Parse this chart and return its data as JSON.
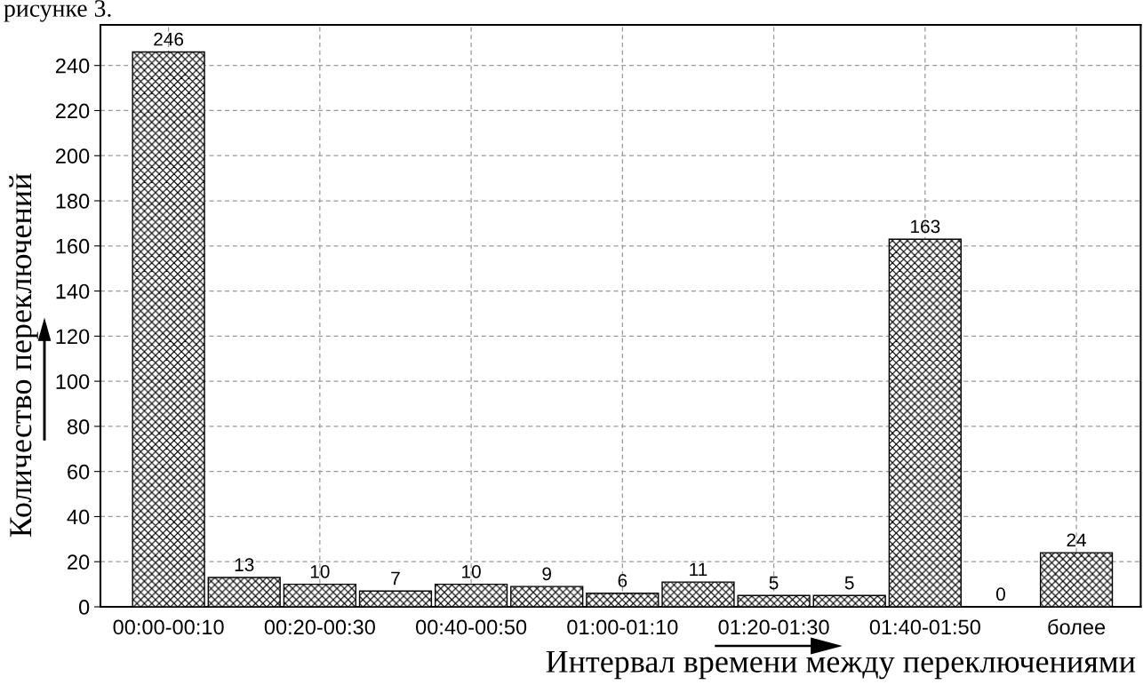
{
  "chart_data": {
    "type": "bar",
    "categories": [
      "00:00-00:10",
      null,
      "00:20-00:30",
      null,
      "00:40-00:50",
      null,
      "01:00-01:10",
      null,
      "01:20-01:30",
      null,
      "01:40-01:50",
      null,
      "более"
    ],
    "values": [
      246,
      13,
      10,
      7,
      10,
      9,
      6,
      11,
      5,
      5,
      163,
      0,
      24
    ],
    "color": "#000000",
    "data_labels": true,
    "xlabel": "Интервал времени между переключениями",
    "ylabel": "Количество переключений",
    "annotations": [
      "рисунке 3."
    ],
    "ylim": [
      0,
      258
    ],
    "yticks": [
      0,
      20,
      40,
      60,
      80,
      100,
      120,
      140,
      160,
      180,
      200,
      220,
      240
    ],
    "grid": true,
    "legend": false
  }
}
